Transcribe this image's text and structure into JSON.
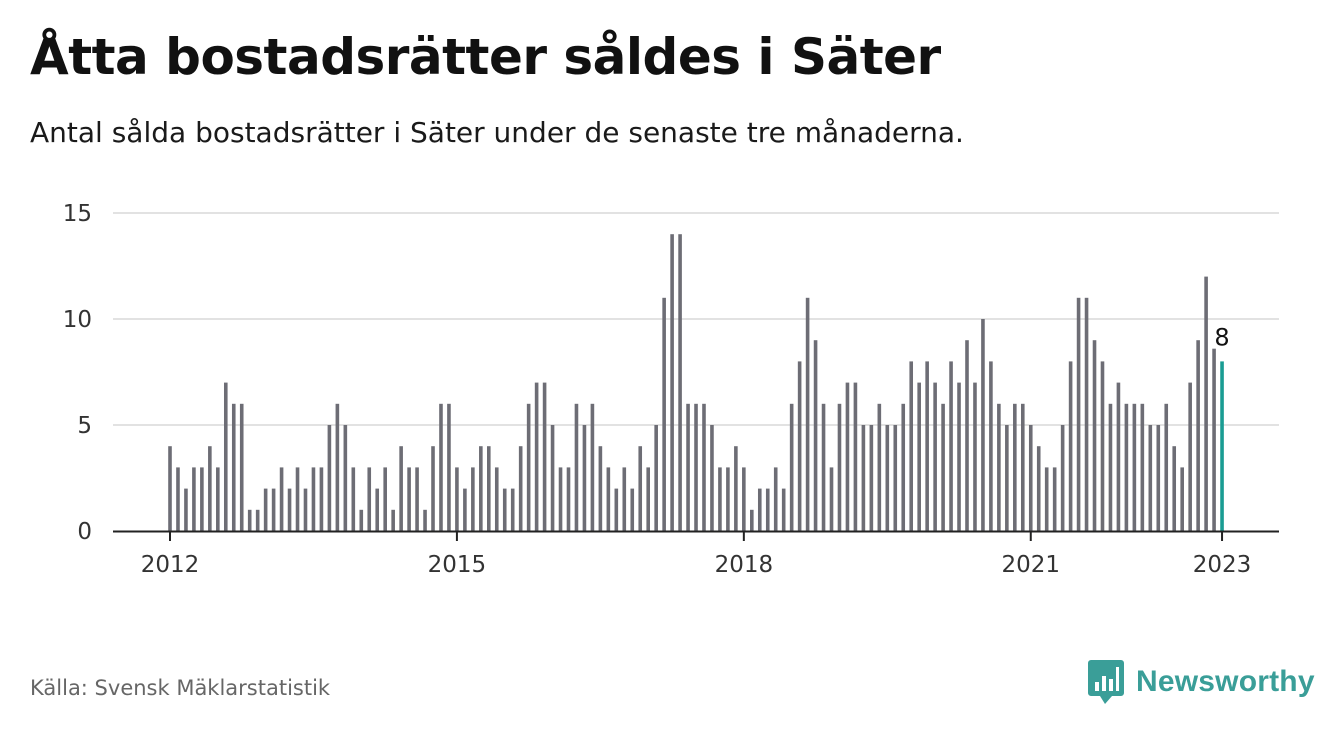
{
  "header": {
    "title": "Åtta bostadsrätter såldes i Säter",
    "subtitle": "Antal sålda bostadsrätter i Säter under de senaste tre månaderna."
  },
  "footer": {
    "source": "Källa: Svensk Mäklarstatistik",
    "brand": "Newsworthy"
  },
  "colors": {
    "bar": "#6d6d75",
    "highlight": "#1a9c93",
    "brand": "#3a9e98",
    "grid": "#d9d9d9"
  },
  "chart_data": {
    "type": "bar",
    "x_start": "2012-01",
    "x_end": "2023-01",
    "frequency": "monthly",
    "values": [
      4,
      3,
      2,
      3,
      3,
      4,
      3,
      7,
      6,
      6,
      1,
      1,
      2,
      2,
      3,
      2,
      3,
      2,
      3,
      3,
      5,
      6,
      5,
      3,
      1,
      3,
      2,
      3,
      1,
      4,
      3,
      3,
      1,
      4,
      6,
      6,
      3,
      2,
      3,
      4,
      4,
      3,
      2,
      2,
      4,
      6,
      7,
      7,
      5,
      3,
      3,
      6,
      5,
      6,
      4,
      3,
      2,
      3,
      2,
      4,
      3,
      5,
      11,
      14,
      14,
      6,
      6,
      6,
      5,
      3,
      3,
      4,
      3,
      1,
      2,
      2,
      3,
      2,
      6,
      8,
      11,
      9,
      6,
      3,
      6,
      7,
      7,
      5,
      5,
      6,
      5,
      5,
      6,
      8,
      7,
      8,
      7,
      6,
      8,
      7,
      9,
      7,
      10,
      8,
      6,
      5,
      6,
      6,
      5,
      4,
      3,
      3,
      5,
      8,
      11,
      11,
      9,
      8,
      6,
      7,
      6,
      6,
      6,
      5,
      5,
      6,
      4,
      3,
      7,
      9,
      12,
      8.6,
      8
    ],
    "highlight_last": true,
    "last_value_label": "8",
    "x_tick_labels": [
      "2012",
      "2015",
      "2018",
      "2021",
      "2023"
    ],
    "y_ticks": [
      0,
      5,
      10,
      15
    ],
    "ylim": [
      0,
      15
    ],
    "grid": true,
    "legend": "none"
  }
}
